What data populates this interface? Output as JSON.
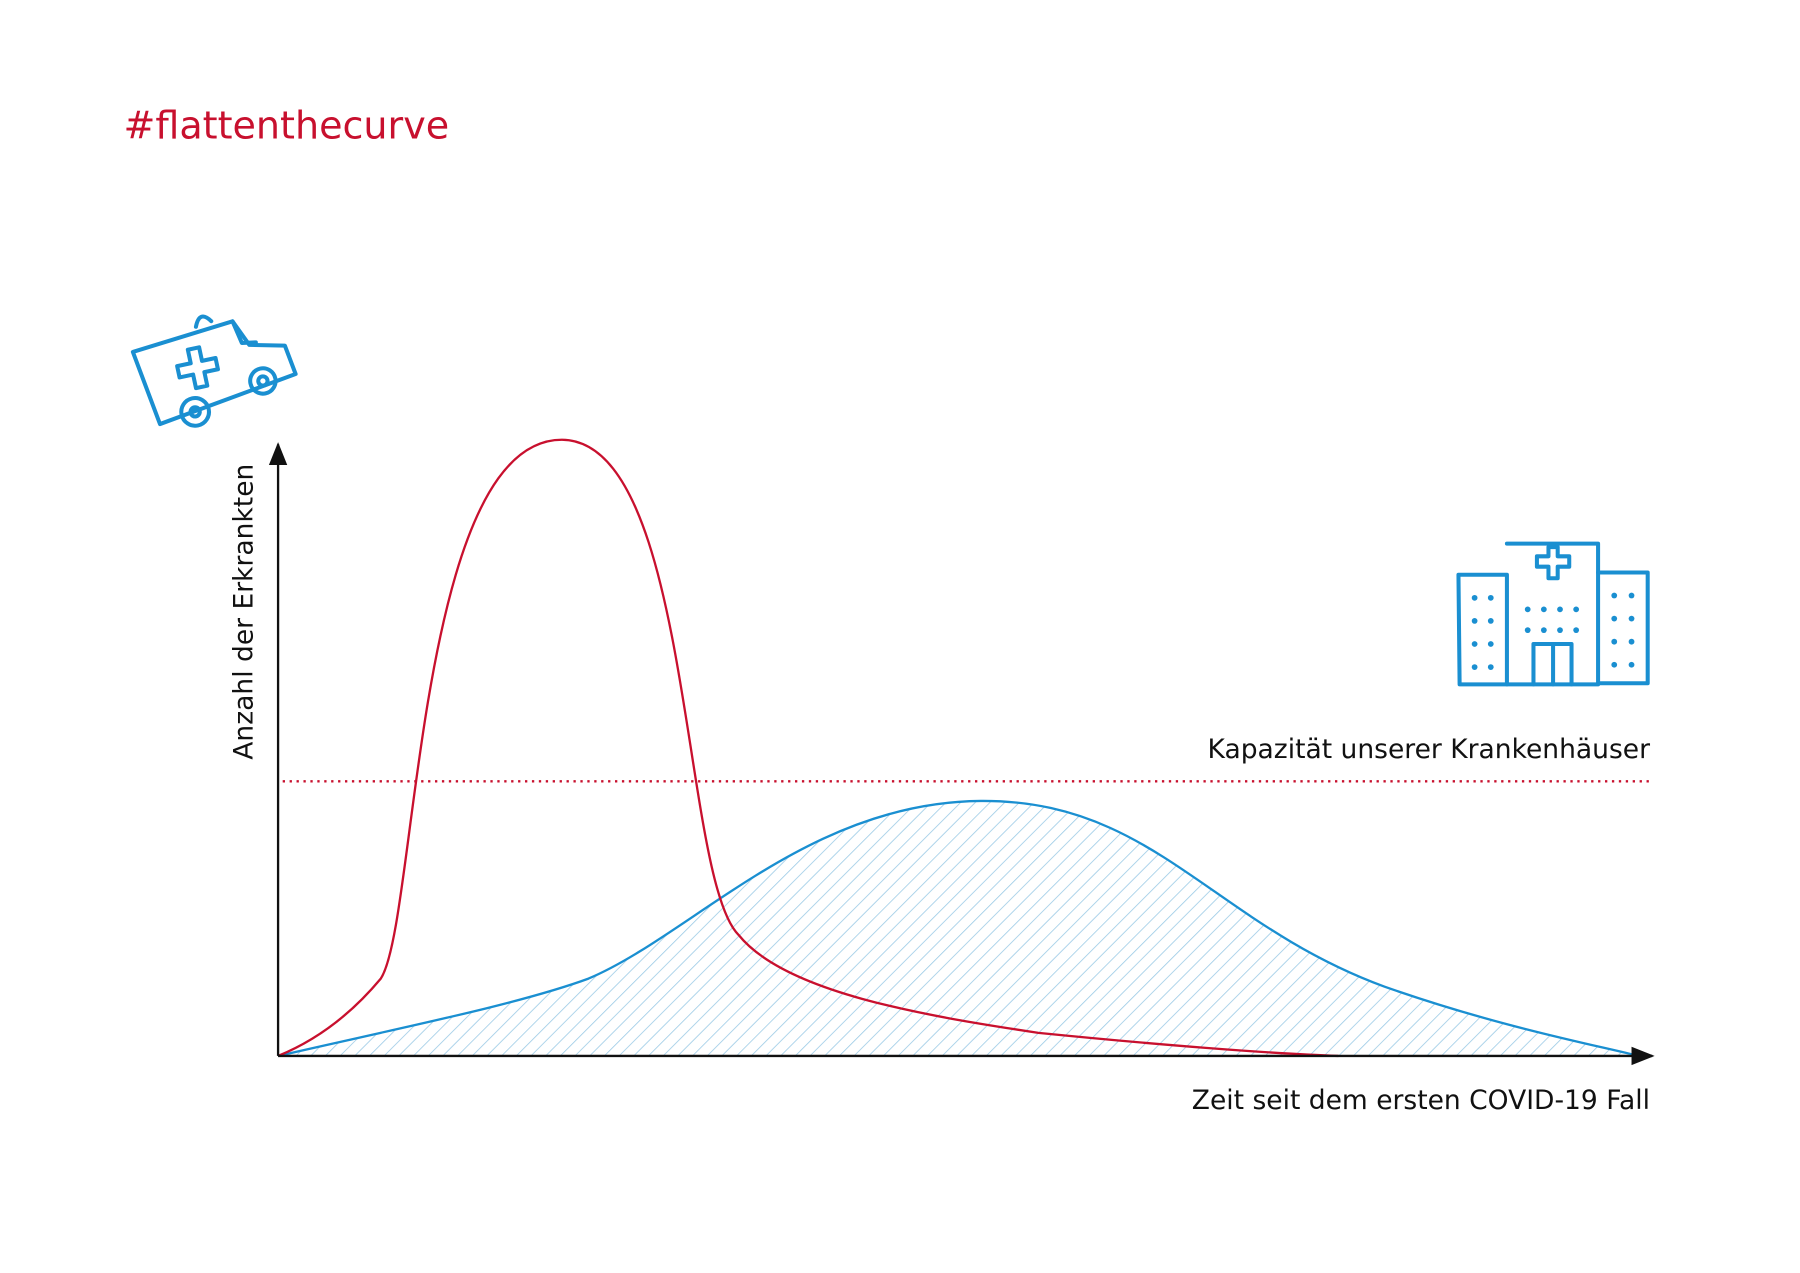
{
  "title": "#flattenthecurve",
  "y_axis_label": "Anzahl der Erkrankten",
  "x_axis_label": "Zeit seit dem ersten COVID-19 Fall",
  "capacity_label": "Kapazität unserer Krankenhäuser"
}
